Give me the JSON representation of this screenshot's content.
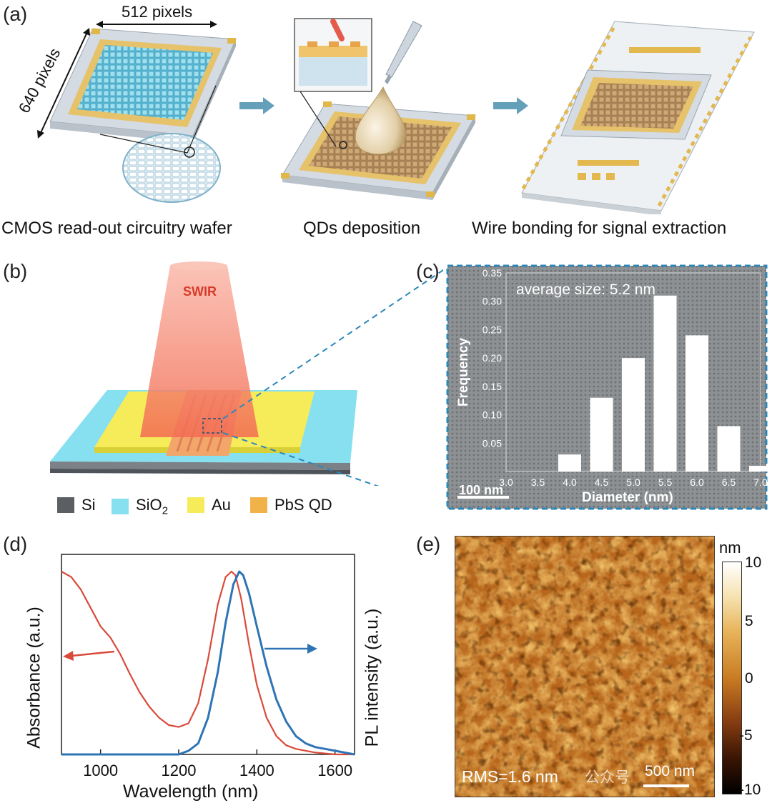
{
  "panel_a": {
    "label": "(a)",
    "dim_width": "512 pixels",
    "dim_height": "640 pixels",
    "captions": [
      "CMOS read-out circuitry wafer",
      "QDs deposition",
      "Wire bonding for signal extraction"
    ],
    "colors": {
      "arrow": "#4a8fae",
      "gold": "#e9c46a",
      "pixel_blue": "#4fb9d6",
      "qd_brown": "#b58a5c"
    }
  },
  "panel_b": {
    "label": "(b)",
    "beam_label": "SWIR",
    "legend": [
      {
        "name": "Si",
        "color": "#5b5e63"
      },
      {
        "name": "SiO",
        "sub": "2",
        "color": "#86e0f0"
      },
      {
        "name": "Au",
        "color": "#f6ec5a"
      },
      {
        "name": "PbS QD",
        "color": "#f2b24a"
      }
    ]
  },
  "panel_c": {
    "label": "(c)",
    "annotation": "average size: 5.2 nm",
    "scale_bar": "100 nm",
    "chart_data": {
      "type": "bar",
      "xlabel": "Diameter (nm)",
      "ylabel": "Frequency",
      "xlim": [
        3.0,
        7.0
      ],
      "ylim": [
        0,
        0.35
      ],
      "xticks": [
        "3.0",
        "3.5",
        "4.0",
        "4.5",
        "5.0",
        "5.5",
        "6.0",
        "6.5",
        "7.0"
      ],
      "yticks": [
        "0.05",
        "0.10",
        "0.15",
        "0.20",
        "0.25",
        "0.30",
        "0.35"
      ],
      "x": [
        4.0,
        4.5,
        5.0,
        5.5,
        6.0,
        6.5,
        7.0
      ],
      "values": [
        0.03,
        0.13,
        0.2,
        0.31,
        0.24,
        0.08,
        0.01
      ]
    }
  },
  "panel_d": {
    "label": "(d)",
    "chart_data": {
      "type": "line",
      "xlabel": "Wavelength (nm)",
      "ylabel_left": "Absorbance (a.u.)",
      "ylabel_right": "PL intensity (a.u.)",
      "xlim": [
        900,
        1650
      ],
      "xticks": [
        "1000",
        "1200",
        "1400",
        "1600"
      ],
      "series": [
        {
          "color": "#d94a3a",
          "axis": "left",
          "x": [
            900,
            925,
            950,
            975,
            1000,
            1025,
            1050,
            1075,
            1100,
            1125,
            1150,
            1175,
            1200,
            1225,
            1250,
            1275,
            1300,
            1320,
            1335,
            1345,
            1360,
            1380,
            1400,
            1425,
            1450,
            1475,
            1500,
            1550,
            1600,
            1650
          ],
          "y": [
            1.0,
            0.97,
            0.9,
            0.8,
            0.7,
            0.64,
            0.55,
            0.44,
            0.34,
            0.26,
            0.2,
            0.16,
            0.15,
            0.17,
            0.28,
            0.52,
            0.82,
            0.97,
            1.0,
            0.98,
            0.85,
            0.6,
            0.38,
            0.2,
            0.1,
            0.05,
            0.03,
            0.01,
            0.0,
            0.0
          ]
        },
        {
          "color": "#2e74b5",
          "axis": "right",
          "x": [
            900,
            1000,
            1100,
            1200,
            1225,
            1250,
            1275,
            1300,
            1320,
            1340,
            1355,
            1365,
            1380,
            1400,
            1425,
            1450,
            1475,
            1500,
            1525,
            1550,
            1575,
            1600,
            1650
          ],
          "y": [
            0.0,
            0.0,
            0.0,
            0.0,
            0.02,
            0.06,
            0.2,
            0.45,
            0.72,
            0.93,
            1.0,
            0.98,
            0.88,
            0.7,
            0.48,
            0.3,
            0.18,
            0.1,
            0.06,
            0.04,
            0.03,
            0.02,
            0.0
          ]
        }
      ]
    }
  },
  "panel_e": {
    "label": "(e)",
    "unit": "nm",
    "colorbar_ticks": [
      "10",
      "5",
      "0",
      "-5",
      "-10"
    ],
    "rms": "RMS=1.6 nm",
    "scale_bar": "500 nm",
    "watermark": "公众号"
  }
}
